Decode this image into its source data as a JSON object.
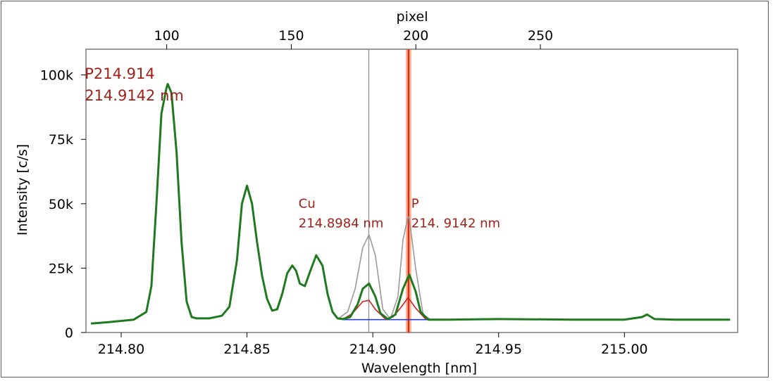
{
  "chart_data": {
    "type": "line",
    "xlabel": "Wavelength [nm]",
    "ylabel": "Intensity [c/s]",
    "top_axis_label": "pixel",
    "xlim": [
      214.786,
      215.045
    ],
    "ylim": [
      0,
      110000
    ],
    "x_ticks": [
      {
        "value": 214.8,
        "label": "214.80"
      },
      {
        "value": 214.85,
        "label": "214.85"
      },
      {
        "value": 214.9,
        "label": "214.90"
      },
      {
        "value": 214.95,
        "label": "214.95"
      },
      {
        "value": 215.0,
        "label": "215.00"
      }
    ],
    "y_ticks": [
      {
        "value": 0,
        "label": "0"
      },
      {
        "value": 25000,
        "label": "25k"
      },
      {
        "value": 50000,
        "label": "50k"
      },
      {
        "value": 75000,
        "label": "75k"
      },
      {
        "value": 100000,
        "label": "100k"
      }
    ],
    "top_ticks": [
      {
        "wavelength": 214.8181,
        "label": "100"
      },
      {
        "wavelength": 214.8676,
        "label": "150"
      },
      {
        "wavelength": 214.9171,
        "label": "200"
      },
      {
        "wavelength": 214.9666,
        "label": "250"
      }
    ],
    "markers": [
      {
        "x": 214.8984,
        "color": "#8f8f8f"
      },
      {
        "x": 214.9142,
        "color": "#ff5a1a"
      }
    ],
    "annotations": [
      {
        "lines": [
          "P214.914",
          "214.9142 nm"
        ],
        "anchor_x": 214.7855,
        "anchor_y": 98500
      },
      {
        "lines": [
          "Cu",
          "214.8984 nm"
        ],
        "anchor_x": 214.8705,
        "anchor_y": 48500
      },
      {
        "lines": [
          "P",
          "214. 9142 nm"
        ],
        "anchor_x": 214.9153,
        "anchor_y": 48500
      }
    ],
    "series": [
      {
        "color": "#1f7a1f",
        "x": [
          214.788,
          214.795,
          214.805,
          214.81,
          214.812,
          214.814,
          214.816,
          214.818,
          214.8185,
          214.82,
          214.822,
          214.824,
          214.826,
          214.828,
          214.83,
          214.835,
          214.84,
          214.843,
          214.846,
          214.848,
          214.85,
          214.852,
          214.854,
          214.856,
          214.858,
          214.86,
          214.862,
          214.864,
          214.866,
          214.868,
          214.8695,
          214.871,
          214.873,
          214.875,
          214.8775,
          214.88,
          214.882,
          214.884,
          214.886,
          214.888,
          214.891,
          214.894,
          214.896,
          214.8985,
          214.901,
          214.903,
          214.906,
          214.909,
          214.912,
          214.9145,
          214.917,
          214.919,
          214.922,
          214.93,
          214.95,
          214.98,
          215.0,
          215.007,
          215.009,
          215.012,
          215.02,
          215.03,
          215.042
        ],
        "y": [
          3500,
          4000,
          5000,
          8000,
          18000,
          50000,
          85000,
          95000,
          96500,
          93000,
          70000,
          35000,
          12000,
          6000,
          5500,
          5500,
          6500,
          10000,
          28000,
          50000,
          57000,
          50000,
          35000,
          22000,
          13000,
          8500,
          9000,
          15000,
          23000,
          26000,
          24000,
          19000,
          18000,
          23500,
          30000,
          26000,
          15000,
          8000,
          5500,
          5200,
          6000,
          11000,
          17000,
          19000,
          14000,
          7500,
          5200,
          7000,
          17000,
          22500,
          16000,
          8000,
          5000,
          5000,
          5200,
          5000,
          5000,
          6000,
          7000,
          5200,
          5000,
          5000,
          5000
        ]
      },
      {
        "color": "#9a9a9a",
        "x": [
          214.886,
          214.89,
          214.893,
          214.896,
          214.8985,
          214.901,
          214.904,
          214.907,
          214.91,
          214.912,
          214.914,
          214.9145,
          214.917,
          214.92,
          214.923
        ],
        "y": [
          5200,
          8000,
          17000,
          33000,
          38000,
          30000,
          9000,
          5200,
          14000,
          36000,
          45000,
          44500,
          25000,
          7000,
          5000
        ]
      },
      {
        "color": "#d02020",
        "x": [
          214.888,
          214.892,
          214.896,
          214.8985,
          214.901,
          214.905,
          214.908,
          214.911,
          214.914,
          214.9145,
          214.917,
          214.921
        ],
        "y": [
          5000,
          7500,
          12000,
          12500,
          9000,
          5200,
          6000,
          9500,
          13500,
          13000,
          9500,
          5200
        ]
      },
      {
        "color": "#2a3fd0",
        "x": [
          214.888,
          214.924
        ],
        "y": [
          5000,
          5000
        ]
      }
    ]
  }
}
